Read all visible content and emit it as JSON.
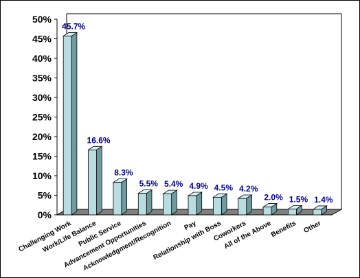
{
  "chart_data": {
    "type": "bar",
    "categories": [
      "Challenging Work",
      "Work/Life Balance",
      "Public Service",
      "Advancement Opportunities",
      "Acknowledgment/Recognition",
      "Pay",
      "Relationship with Boss",
      "Coworkers",
      "All of the Above",
      "Benefits",
      "Other"
    ],
    "values": [
      45.7,
      16.6,
      8.3,
      5.5,
      5.4,
      4.9,
      4.5,
      4.2,
      2.0,
      1.5,
      1.4
    ],
    "data_labels": [
      "45.7%",
      "16.6%",
      "8.3%",
      "5.5%",
      "5.4%",
      "4.9%",
      "4.5%",
      "4.2%",
      "2.0%",
      "1.5%",
      "1.4%"
    ],
    "y_ticks": [
      "0%",
      "5%",
      "10%",
      "15%",
      "20%",
      "25%",
      "30%",
      "35%",
      "40%",
      "45%",
      "50%"
    ],
    "ylim": [
      0,
      50
    ],
    "grid": false,
    "legend": "none",
    "colors": {
      "bar_front": "#b7dde0",
      "bar_side": "#6f9aa0",
      "bar_top": "#d9eef0",
      "floor": "#808080",
      "data_label": "#00008b",
      "axis": "#000000"
    }
  }
}
